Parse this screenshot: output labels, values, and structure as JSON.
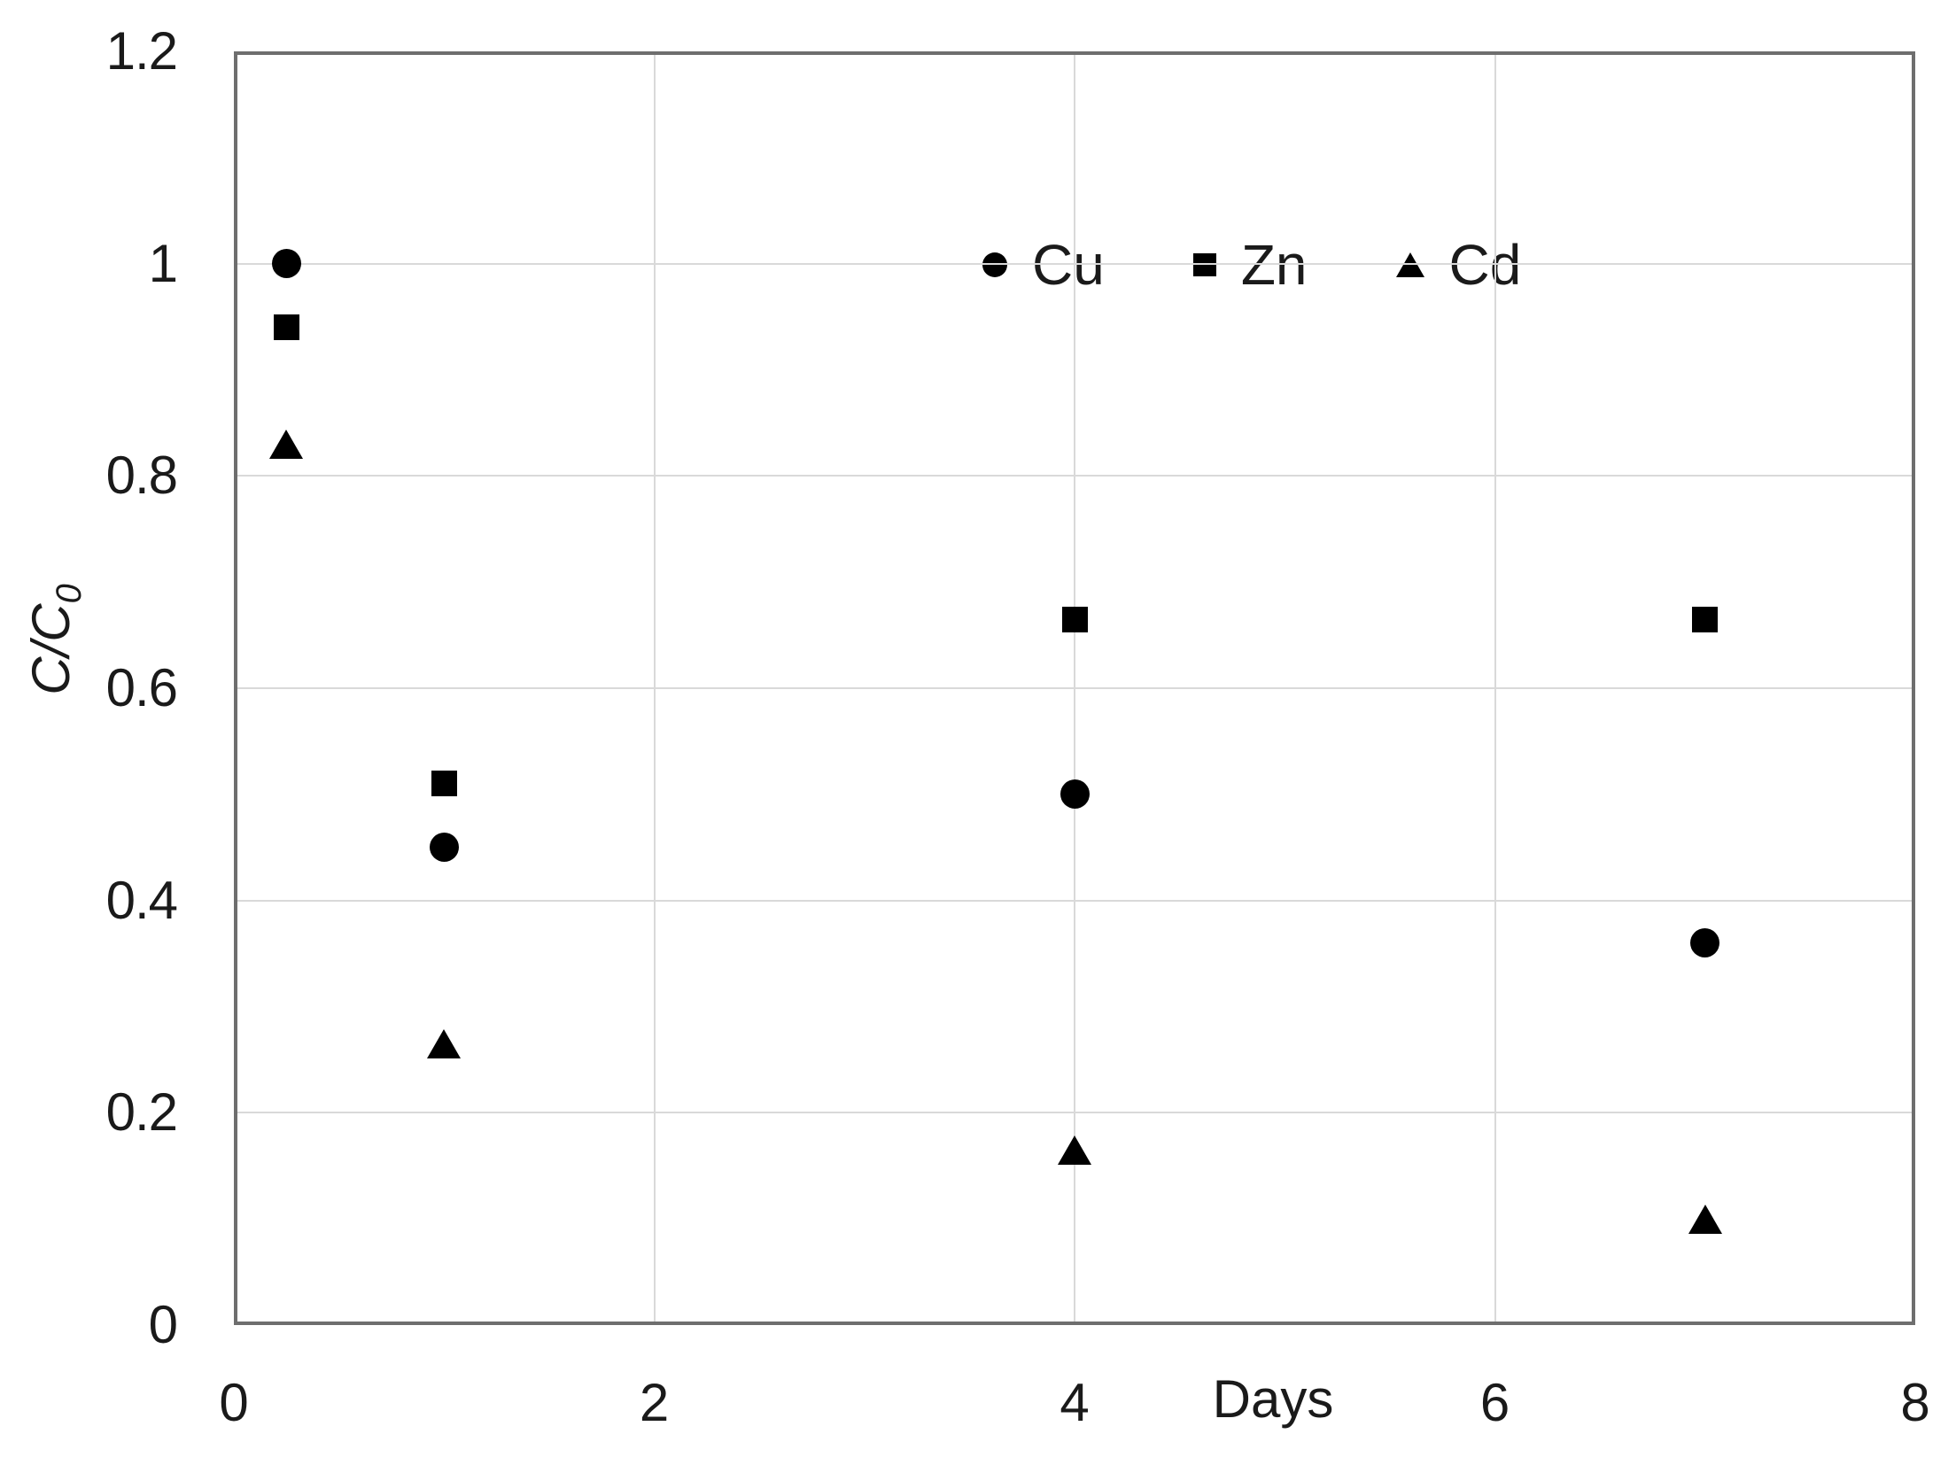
{
  "chart_data": {
    "type": "scatter",
    "title": "",
    "xlabel": "Days",
    "ylabel": "C/C₀",
    "ylabel_main": "C/C",
    "ylabel_sub": "0",
    "xlim": [
      0,
      8
    ],
    "ylim": [
      0,
      1.2
    ],
    "grid": true,
    "legend_position": "inside-top-center",
    "x_ticks": [
      {
        "v": 0,
        "label": "0"
      },
      {
        "v": 2,
        "label": "2"
      },
      {
        "v": 4,
        "label": "4"
      },
      {
        "v": 6,
        "label": "6"
      },
      {
        "v": 8,
        "label": "8"
      }
    ],
    "y_ticks": [
      {
        "v": 0,
        "label": "0"
      },
      {
        "v": 0.2,
        "label": "0.2"
      },
      {
        "v": 0.4,
        "label": "0.4"
      },
      {
        "v": 0.6,
        "label": "0.6"
      },
      {
        "v": 0.8,
        "label": "0.8"
      },
      {
        "v": 1,
        "label": "1"
      },
      {
        "v": 1.2,
        "label": "1.2"
      }
    ],
    "series": [
      {
        "name": "Cu",
        "marker": "circle",
        "points": [
          [
            0.25,
            1.0
          ],
          [
            1,
            0.45
          ],
          [
            4,
            0.5
          ],
          [
            7,
            0.36
          ]
        ]
      },
      {
        "name": "Zn",
        "marker": "square",
        "points": [
          [
            0.25,
            0.94
          ],
          [
            1,
            0.51
          ],
          [
            4,
            0.665
          ],
          [
            7,
            0.665
          ]
        ]
      },
      {
        "name": "Cd",
        "marker": "triangle",
        "points": [
          [
            0.25,
            0.83
          ],
          [
            1,
            0.265
          ],
          [
            4,
            0.165
          ],
          [
            7,
            0.1
          ]
        ]
      }
    ],
    "colors": {
      "marker": "#000000",
      "gridline": "#d9d9d9",
      "plot_border": "#6e6e6e",
      "text": "#000000"
    }
  }
}
